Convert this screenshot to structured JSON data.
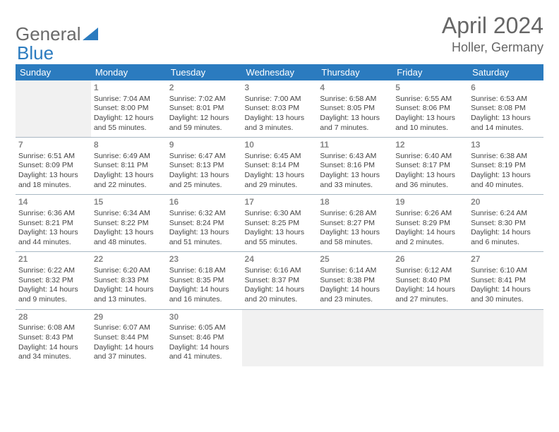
{
  "logo": {
    "part1": "General",
    "part2": "Blue"
  },
  "title": "April 2024",
  "location": "Holler, Germany",
  "header_bg": "#2b7bbf",
  "header_text": "#ffffff",
  "divider_color": "#a9b8c4",
  "empty_bg": "#f1f1f1",
  "daynum_color": "#888888",
  "body_text": "#444444",
  "dayHeaders": [
    "Sunday",
    "Monday",
    "Tuesday",
    "Wednesday",
    "Thursday",
    "Friday",
    "Saturday"
  ],
  "weeks": [
    [
      null,
      {
        "n": "1",
        "sunrise": "Sunrise: 7:04 AM",
        "sunset": "Sunset: 8:00 PM",
        "daylight": "Daylight: 12 hours and 55 minutes."
      },
      {
        "n": "2",
        "sunrise": "Sunrise: 7:02 AM",
        "sunset": "Sunset: 8:01 PM",
        "daylight": "Daylight: 12 hours and 59 minutes."
      },
      {
        "n": "3",
        "sunrise": "Sunrise: 7:00 AM",
        "sunset": "Sunset: 8:03 PM",
        "daylight": "Daylight: 13 hours and 3 minutes."
      },
      {
        "n": "4",
        "sunrise": "Sunrise: 6:58 AM",
        "sunset": "Sunset: 8:05 PM",
        "daylight": "Daylight: 13 hours and 7 minutes."
      },
      {
        "n": "5",
        "sunrise": "Sunrise: 6:55 AM",
        "sunset": "Sunset: 8:06 PM",
        "daylight": "Daylight: 13 hours and 10 minutes."
      },
      {
        "n": "6",
        "sunrise": "Sunrise: 6:53 AM",
        "sunset": "Sunset: 8:08 PM",
        "daylight": "Daylight: 13 hours and 14 minutes."
      }
    ],
    [
      {
        "n": "7",
        "sunrise": "Sunrise: 6:51 AM",
        "sunset": "Sunset: 8:09 PM",
        "daylight": "Daylight: 13 hours and 18 minutes."
      },
      {
        "n": "8",
        "sunrise": "Sunrise: 6:49 AM",
        "sunset": "Sunset: 8:11 PM",
        "daylight": "Daylight: 13 hours and 22 minutes."
      },
      {
        "n": "9",
        "sunrise": "Sunrise: 6:47 AM",
        "sunset": "Sunset: 8:13 PM",
        "daylight": "Daylight: 13 hours and 25 minutes."
      },
      {
        "n": "10",
        "sunrise": "Sunrise: 6:45 AM",
        "sunset": "Sunset: 8:14 PM",
        "daylight": "Daylight: 13 hours and 29 minutes."
      },
      {
        "n": "11",
        "sunrise": "Sunrise: 6:43 AM",
        "sunset": "Sunset: 8:16 PM",
        "daylight": "Daylight: 13 hours and 33 minutes."
      },
      {
        "n": "12",
        "sunrise": "Sunrise: 6:40 AM",
        "sunset": "Sunset: 8:17 PM",
        "daylight": "Daylight: 13 hours and 36 minutes."
      },
      {
        "n": "13",
        "sunrise": "Sunrise: 6:38 AM",
        "sunset": "Sunset: 8:19 PM",
        "daylight": "Daylight: 13 hours and 40 minutes."
      }
    ],
    [
      {
        "n": "14",
        "sunrise": "Sunrise: 6:36 AM",
        "sunset": "Sunset: 8:21 PM",
        "daylight": "Daylight: 13 hours and 44 minutes."
      },
      {
        "n": "15",
        "sunrise": "Sunrise: 6:34 AM",
        "sunset": "Sunset: 8:22 PM",
        "daylight": "Daylight: 13 hours and 48 minutes."
      },
      {
        "n": "16",
        "sunrise": "Sunrise: 6:32 AM",
        "sunset": "Sunset: 8:24 PM",
        "daylight": "Daylight: 13 hours and 51 minutes."
      },
      {
        "n": "17",
        "sunrise": "Sunrise: 6:30 AM",
        "sunset": "Sunset: 8:25 PM",
        "daylight": "Daylight: 13 hours and 55 minutes."
      },
      {
        "n": "18",
        "sunrise": "Sunrise: 6:28 AM",
        "sunset": "Sunset: 8:27 PM",
        "daylight": "Daylight: 13 hours and 58 minutes."
      },
      {
        "n": "19",
        "sunrise": "Sunrise: 6:26 AM",
        "sunset": "Sunset: 8:29 PM",
        "daylight": "Daylight: 14 hours and 2 minutes."
      },
      {
        "n": "20",
        "sunrise": "Sunrise: 6:24 AM",
        "sunset": "Sunset: 8:30 PM",
        "daylight": "Daylight: 14 hours and 6 minutes."
      }
    ],
    [
      {
        "n": "21",
        "sunrise": "Sunrise: 6:22 AM",
        "sunset": "Sunset: 8:32 PM",
        "daylight": "Daylight: 14 hours and 9 minutes."
      },
      {
        "n": "22",
        "sunrise": "Sunrise: 6:20 AM",
        "sunset": "Sunset: 8:33 PM",
        "daylight": "Daylight: 14 hours and 13 minutes."
      },
      {
        "n": "23",
        "sunrise": "Sunrise: 6:18 AM",
        "sunset": "Sunset: 8:35 PM",
        "daylight": "Daylight: 14 hours and 16 minutes."
      },
      {
        "n": "24",
        "sunrise": "Sunrise: 6:16 AM",
        "sunset": "Sunset: 8:37 PM",
        "daylight": "Daylight: 14 hours and 20 minutes."
      },
      {
        "n": "25",
        "sunrise": "Sunrise: 6:14 AM",
        "sunset": "Sunset: 8:38 PM",
        "daylight": "Daylight: 14 hours and 23 minutes."
      },
      {
        "n": "26",
        "sunrise": "Sunrise: 6:12 AM",
        "sunset": "Sunset: 8:40 PM",
        "daylight": "Daylight: 14 hours and 27 minutes."
      },
      {
        "n": "27",
        "sunrise": "Sunrise: 6:10 AM",
        "sunset": "Sunset: 8:41 PM",
        "daylight": "Daylight: 14 hours and 30 minutes."
      }
    ],
    [
      {
        "n": "28",
        "sunrise": "Sunrise: 6:08 AM",
        "sunset": "Sunset: 8:43 PM",
        "daylight": "Daylight: 14 hours and 34 minutes."
      },
      {
        "n": "29",
        "sunrise": "Sunrise: 6:07 AM",
        "sunset": "Sunset: 8:44 PM",
        "daylight": "Daylight: 14 hours and 37 minutes."
      },
      {
        "n": "30",
        "sunrise": "Sunrise: 6:05 AM",
        "sunset": "Sunset: 8:46 PM",
        "daylight": "Daylight: 14 hours and 41 minutes."
      },
      null,
      null,
      null,
      null
    ]
  ]
}
